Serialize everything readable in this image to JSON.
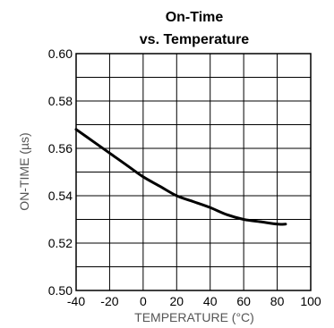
{
  "chart_data": {
    "type": "line",
    "title": "On-Time",
    "subtitle": "vs. Temperature",
    "xlabel": "TEMPERATURE (°C)",
    "ylabel": "ON-TIME (µs)",
    "xlim": [
      -40,
      100
    ],
    "ylim": [
      0.5,
      0.6
    ],
    "x_ticks": [
      -40,
      -20,
      0,
      20,
      40,
      60,
      80,
      100
    ],
    "x_tick_labels": [
      "-40",
      "-20",
      "0",
      "20",
      "40",
      "60",
      "80",
      "100"
    ],
    "y_ticks": [
      0.5,
      0.52,
      0.54,
      0.56,
      0.58,
      0.6
    ],
    "y_tick_labels": [
      "0.50",
      "0.52",
      "0.54",
      "0.56",
      "0.58",
      "0.60"
    ],
    "grid": true,
    "series": [
      {
        "x": [
          -40,
          -30,
          -20,
          -10,
          0,
          10,
          20,
          30,
          40,
          50,
          60,
          70,
          80,
          85
        ],
        "y": [
          0.568,
          0.563,
          0.558,
          0.553,
          0.548,
          0.544,
          0.54,
          0.5375,
          0.535,
          0.532,
          0.53,
          0.529,
          0.528,
          0.528
        ]
      }
    ],
    "colors": {
      "line": "#000000",
      "grid": "#000000",
      "frame": "#000000"
    }
  }
}
